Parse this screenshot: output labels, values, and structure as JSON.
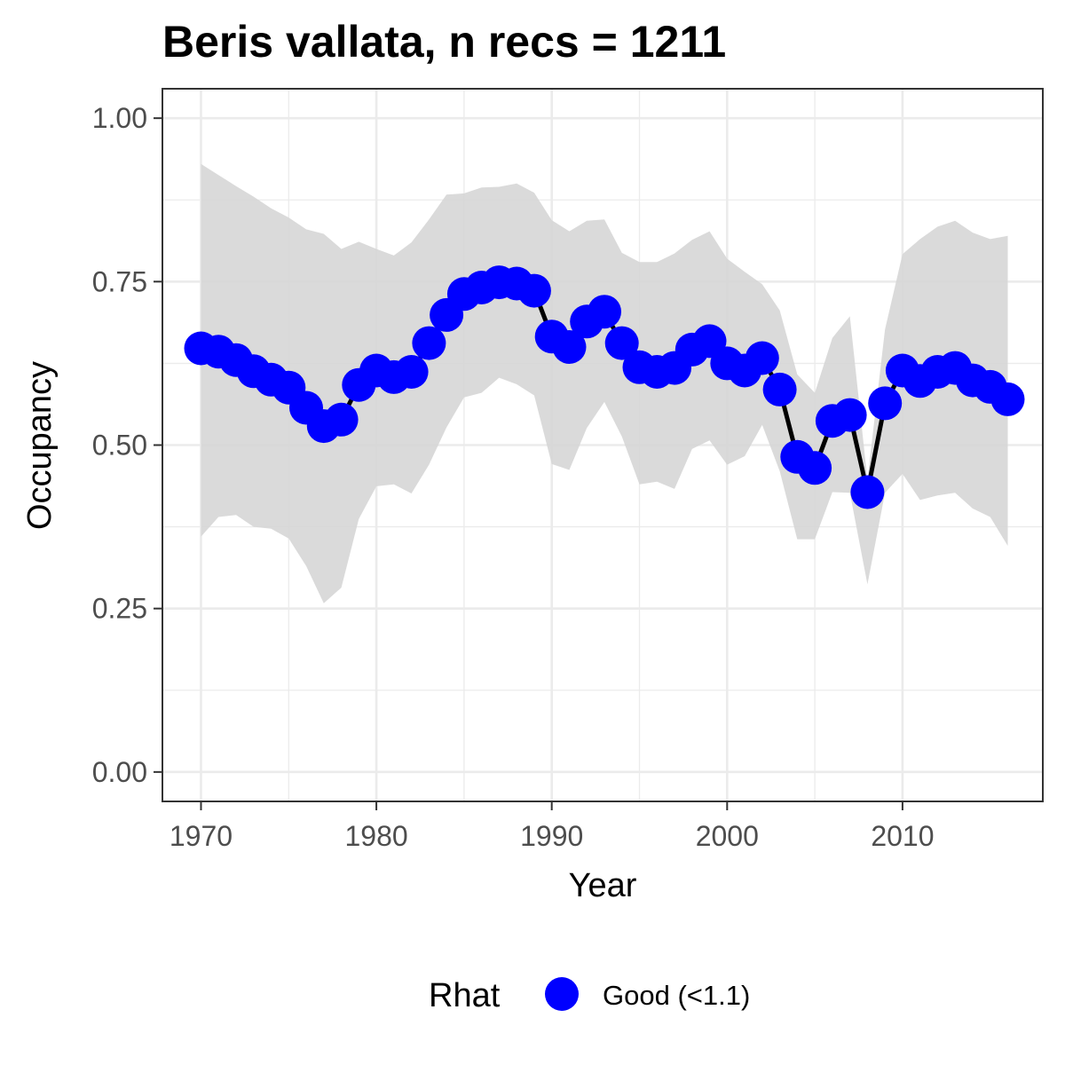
{
  "chart_data": {
    "type": "line",
    "title": "Beris vallata, n recs = 1211",
    "xlabel": "Year",
    "ylabel": "Occupancy",
    "xlim": [
      1967.8,
      2018
    ],
    "ylim": [
      -0.045,
      1.045
    ],
    "x_ticks": [
      1970,
      1980,
      1990,
      2000,
      2010
    ],
    "x_tick_labels": [
      "1970",
      "1980",
      "1990",
      "2000",
      "2010"
    ],
    "y_ticks": [
      0,
      0.25,
      0.5,
      0.75,
      1
    ],
    "y_tick_labels": [
      "0.00",
      "0.25",
      "0.50",
      "0.75",
      "1.00"
    ],
    "grid": true,
    "legend": {
      "title": "Rhat",
      "position": "bottom",
      "items": [
        {
          "label": "Good (<1.1)",
          "color": "#0000ff"
        }
      ]
    },
    "colors": {
      "points": "#0000ff",
      "line": "#000000",
      "ribbon": "#d6d6d6",
      "panel_border": "#333333",
      "grid": "#ebebeb"
    },
    "x": [
      1970,
      1971,
      1972,
      1973,
      1974,
      1975,
      1976,
      1977,
      1978,
      1979,
      1980,
      1981,
      1982,
      1983,
      1984,
      1985,
      1986,
      1987,
      1988,
      1989,
      1990,
      1991,
      1992,
      1993,
      1994,
      1995,
      1996,
      1997,
      1998,
      1999,
      2000,
      2001,
      2002,
      2003,
      2004,
      2005,
      2006,
      2007,
      2008,
      2009,
      2010,
      2011,
      2012,
      2013,
      2014,
      2015,
      2016
    ],
    "series": [
      {
        "values": [
          0.648,
          0.643,
          0.63,
          0.613,
          0.6,
          0.588,
          0.557,
          0.529,
          0.539,
          0.592,
          0.614,
          0.604,
          0.612,
          0.656,
          0.699,
          0.731,
          0.741,
          0.749,
          0.747,
          0.736,
          0.666,
          0.65,
          0.689,
          0.704,
          0.656,
          0.619,
          0.612,
          0.618,
          0.646,
          0.659,
          0.625,
          0.614,
          0.633,
          0.585,
          0.482,
          0.465,
          0.537,
          0.546,
          0.428,
          0.564,
          0.614,
          0.598,
          0.612,
          0.618,
          0.599,
          0.589,
          0.57
        ]
      }
    ],
    "ribbon": {
      "lower": [
        0.36,
        0.39,
        0.393,
        0.375,
        0.372,
        0.357,
        0.315,
        0.258,
        0.282,
        0.387,
        0.437,
        0.44,
        0.426,
        0.47,
        0.527,
        0.573,
        0.58,
        0.603,
        0.593,
        0.576,
        0.471,
        0.462,
        0.526,
        0.566,
        0.513,
        0.44,
        0.444,
        0.433,
        0.494,
        0.507,
        0.47,
        0.483,
        0.531,
        0.46,
        0.356,
        0.356,
        0.428,
        0.427,
        0.287,
        0.427,
        0.456,
        0.416,
        0.423,
        0.427,
        0.403,
        0.39,
        0.346
      ],
      "upper": [
        0.93,
        0.913,
        0.896,
        0.88,
        0.862,
        0.848,
        0.83,
        0.823,
        0.8,
        0.811,
        0.8,
        0.79,
        0.81,
        0.845,
        0.883,
        0.885,
        0.894,
        0.895,
        0.9,
        0.886,
        0.844,
        0.827,
        0.843,
        0.845,
        0.794,
        0.78,
        0.78,
        0.793,
        0.814,
        0.827,
        0.785,
        0.765,
        0.746,
        0.706,
        0.608,
        0.58,
        0.664,
        0.697,
        0.447,
        0.677,
        0.792,
        0.815,
        0.834,
        0.843,
        0.825,
        0.815,
        0.82
      ]
    }
  }
}
